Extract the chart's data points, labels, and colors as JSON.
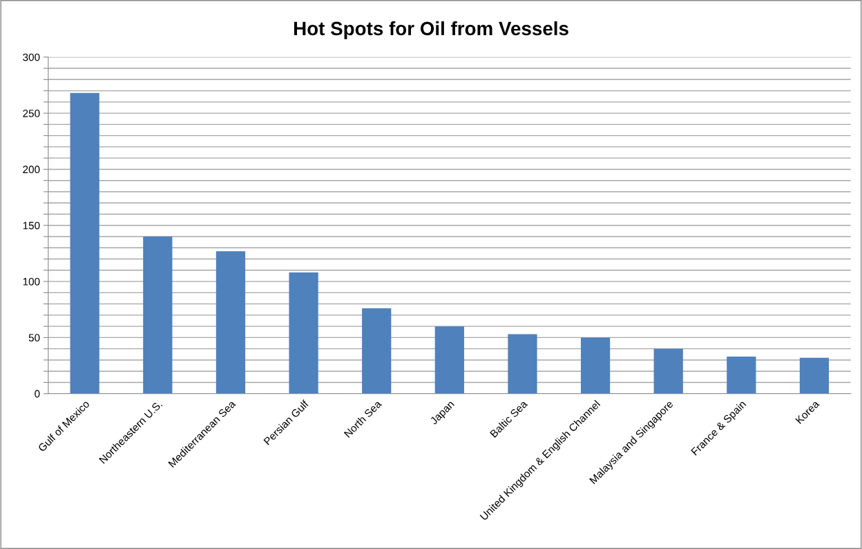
{
  "chart_data": {
    "type": "bar",
    "title": "Hot Spots for Oil from Vessels",
    "categories": [
      "Gulf of Mexico",
      "Northeastern U.S.",
      "Mediterranean Sea",
      "Persian Gulf",
      "North Sea",
      "Japan",
      "Baltic Sea",
      "United Kingdom & English Channel",
      "Malaysia and Singapore",
      "France & Spain",
      "Korea"
    ],
    "values": [
      268,
      140,
      127,
      108,
      76,
      60,
      53,
      50,
      40,
      33,
      32
    ],
    "color": "#4f81bd",
    "ylim": [
      0,
      300
    ],
    "yticks": [
      0,
      {
        "value": 10,
        "label": null
      },
      {
        "value": 20,
        "label": null
      },
      {
        "value": 30,
        "label": null
      },
      {
        "value": 40,
        "label": null
      },
      50,
      {
        "value": 60,
        "label": null
      },
      {
        "value": 70,
        "label": null
      },
      {
        "value": 80,
        "label": null
      },
      {
        "value": 90,
        "label": null
      },
      100,
      {
        "value": 110,
        "label": null
      },
      {
        "value": 120,
        "label": null
      },
      {
        "value": 130,
        "label": null
      },
      {
        "value": 140,
        "label": null
      },
      150,
      {
        "value": 160,
        "label": null
      },
      {
        "value": 170,
        "label": null
      },
      {
        "value": 180,
        "label": null
      },
      {
        "value": 190,
        "label": null
      },
      200,
      {
        "value": 210,
        "label": null
      },
      {
        "value": 220,
        "label": null
      },
      {
        "value": 230,
        "label": null
      },
      {
        "value": 240,
        "label": null
      },
      250,
      {
        "value": 260,
        "label": null
      },
      {
        "value": 270,
        "label": null
      },
      {
        "value": 280,
        "label": null
      },
      {
        "value": 290,
        "label": null
      },
      300
    ],
    "grid": "y"
  }
}
